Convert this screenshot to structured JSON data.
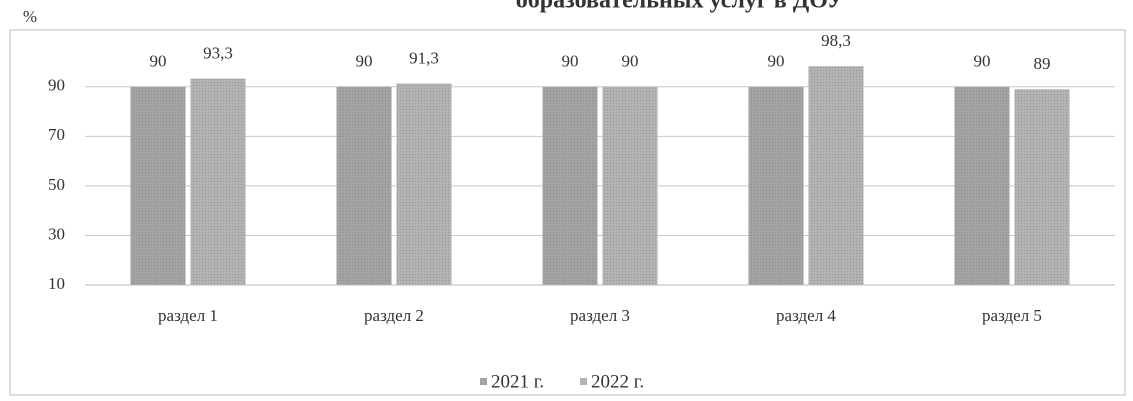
{
  "chart_data": {
    "type": "bar",
    "title": "образовательных услуг в ДОУ",
    "y_label": "%",
    "categories": [
      "раздел 1",
      "раздел 2",
      "раздел 3",
      "раздел 4",
      "раздел 5"
    ],
    "series": [
      {
        "name": "2021 г.",
        "color": "#a3a3a3",
        "values": [
          90,
          90,
          90,
          90,
          90
        ],
        "value_labels": [
          "90",
          "90",
          "90",
          "90",
          "90"
        ]
      },
      {
        "name": "2022 г.",
        "color": "#b3b3b3",
        "values": [
          93.3,
          91.3,
          90,
          98.3,
          89
        ],
        "value_labels": [
          "93,3",
          "91,3",
          "90",
          "98,3",
          "89"
        ]
      }
    ],
    "ylim": [
      10,
      100
    ],
    "yticks": [
      10,
      30,
      50,
      70,
      90
    ],
    "grid": true,
    "legend": "bottom"
  }
}
